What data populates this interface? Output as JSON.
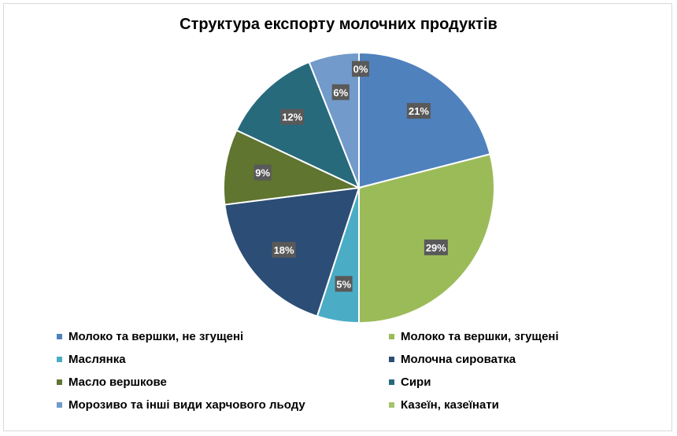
{
  "chart_data": {
    "type": "pie",
    "title": "Структура експорту молочних продуктів",
    "categories": [
      "Молоко та вершки, не згущені",
      "Молоко та вершки, згущені",
      "Маслянка",
      "Молочна сироватка",
      "Масло вершкове",
      "Сири",
      "Морозиво та інші види харчового льоду",
      "Казеїн, казеїнати"
    ],
    "values": [
      21,
      29,
      5,
      18,
      9,
      12,
      6,
      0
    ],
    "labels": [
      "21%",
      "29%",
      "5%",
      "18%",
      "9%",
      "12%",
      "6%",
      "0%"
    ],
    "colors": [
      "#4f81bd",
      "#9bbb59",
      "#4bacc6",
      "#2c4d75",
      "#5f7530",
      "#276a7c",
      "#729aca",
      "#a5c46e"
    ],
    "legend_position": "bottom",
    "start_angle_deg": 0,
    "direction": "clockwise"
  }
}
